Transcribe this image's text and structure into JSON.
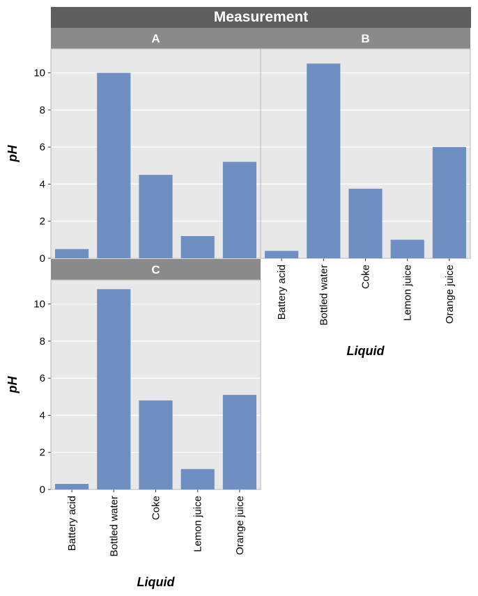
{
  "chart_data": {
    "type": "bar",
    "title": "Measurement",
    "xlabel": "Liquid",
    "ylabel": "pH",
    "categories": [
      "Battery acid",
      "Bottled water",
      "Coke",
      "Lemon juice",
      "Orange juice"
    ],
    "ylim": [
      0,
      11.3
    ],
    "yticks": [
      0,
      2,
      4,
      6,
      8,
      10
    ],
    "grid": true,
    "colors": {
      "bar": "#6f8fc2",
      "panel_bg": "#e8e8e8",
      "grid": "#ffffff",
      "strip_bg": "#8a8a8a",
      "super_strip_bg": "#5e5e5e",
      "panel_border": "#b5b5b5"
    },
    "panels": [
      {
        "label": "A",
        "values": [
          0.5,
          10.0,
          4.5,
          1.2,
          5.2
        ]
      },
      {
        "label": "B",
        "values": [
          0.4,
          10.5,
          3.75,
          1.0,
          6.0
        ]
      },
      {
        "label": "C",
        "values": [
          0.3,
          10.8,
          4.8,
          1.1,
          5.1
        ]
      }
    ]
  }
}
